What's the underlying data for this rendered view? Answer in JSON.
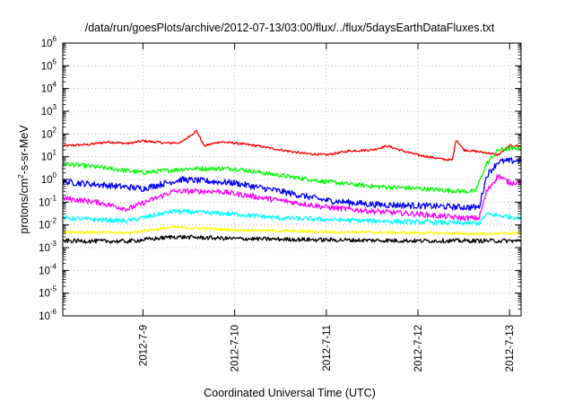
{
  "chart_data": {
    "type": "line",
    "title": "/data/run/goesPlots/archive/2012-07-13/03:00/flux/../flux/5daysEarthDataFluxes.txt",
    "xlabel": "Coordinated Universal Time (UTC)",
    "ylabel": {
      "base": "protons/cm",
      "exp": "2",
      "rest": "-s-sr-MeV"
    },
    "yscale": "log",
    "ylim": [
      1e-06,
      1000000.0
    ],
    "xlim": [
      "2012-07-08T03:00",
      "2012-07-13T03:00"
    ],
    "grid": true,
    "legend": "none",
    "y_ticks": [
      {
        "value": 1e-06,
        "base": "10",
        "exp": "-6"
      },
      {
        "value": 1e-05,
        "base": "10",
        "exp": "-5"
      },
      {
        "value": 0.0001,
        "base": "10",
        "exp": "-4"
      },
      {
        "value": 0.001,
        "base": "10",
        "exp": "-3"
      },
      {
        "value": 0.01,
        "base": "10",
        "exp": "-2"
      },
      {
        "value": 0.1,
        "base": "10",
        "exp": "-1"
      },
      {
        "value": 1,
        "base": "10",
        "exp": "0"
      },
      {
        "value": 10,
        "base": "10",
        "exp": "1"
      },
      {
        "value": 100,
        "base": "10",
        "exp": "2"
      },
      {
        "value": 1000,
        "base": "10",
        "exp": "3"
      },
      {
        "value": 10000,
        "base": "10",
        "exp": "4"
      },
      {
        "value": 100000,
        "base": "10",
        "exp": "5"
      },
      {
        "value": 1000000,
        "base": "10",
        "exp": "6"
      }
    ],
    "x_ticks": [
      {
        "label": "2012-7-9",
        "value": "2012-07-09T00:00"
      },
      {
        "label": "2012-7-10",
        "value": "2012-07-10T00:00"
      },
      {
        "label": "2012-7-11",
        "value": "2012-07-11T00:00"
      },
      {
        "label": "2012-7-12",
        "value": "2012-07-12T00:00"
      },
      {
        "label": "2012-7-13",
        "value": "2012-07-13T00:00"
      }
    ],
    "series": [
      {
        "color": "#ff0000",
        "points": [
          [
            "2012-07-08T03:00",
            30
          ],
          [
            "2012-07-08T10:00",
            35
          ],
          [
            "2012-07-08T15:00",
            45
          ],
          [
            "2012-07-08T20:00",
            38
          ],
          [
            "2012-07-09T00:00",
            50
          ],
          [
            "2012-07-09T06:00",
            40
          ],
          [
            "2012-07-09T10:00",
            42
          ],
          [
            "2012-07-09T14:00",
            140
          ],
          [
            "2012-07-09T16:00",
            30
          ],
          [
            "2012-07-09T20:00",
            45
          ],
          [
            "2012-07-10T00:00",
            40
          ],
          [
            "2012-07-10T06:00",
            30
          ],
          [
            "2012-07-10T12:00",
            20
          ],
          [
            "2012-07-10T18:00",
            14
          ],
          [
            "2012-07-11T00:00",
            12
          ],
          [
            "2012-07-11T06:00",
            18
          ],
          [
            "2012-07-11T12:00",
            20
          ],
          [
            "2012-07-11T16:00",
            30
          ],
          [
            "2012-07-11T20:00",
            18
          ],
          [
            "2012-07-12T00:00",
            12
          ],
          [
            "2012-07-12T06:00",
            8
          ],
          [
            "2012-07-12T09:00",
            7
          ],
          [
            "2012-07-12T10:00",
            60
          ],
          [
            "2012-07-12T12:00",
            20
          ],
          [
            "2012-07-12T18:00",
            15
          ],
          [
            "2012-07-12T21:00",
            12
          ],
          [
            "2012-07-13T00:00",
            30
          ],
          [
            "2012-07-13T03:00",
            30
          ]
        ]
      },
      {
        "color": "#00ff00",
        "points": [
          [
            "2012-07-08T03:00",
            5
          ],
          [
            "2012-07-08T12:00",
            3.5
          ],
          [
            "2012-07-09T00:00",
            2
          ],
          [
            "2012-07-09T12:00",
            3
          ],
          [
            "2012-07-10T00:00",
            3
          ],
          [
            "2012-07-10T12:00",
            1.5
          ],
          [
            "2012-07-11T00:00",
            0.8
          ],
          [
            "2012-07-11T12:00",
            0.5
          ],
          [
            "2012-07-12T00:00",
            0.4
          ],
          [
            "2012-07-12T12:00",
            0.3
          ],
          [
            "2012-07-12T15:00",
            0.3
          ],
          [
            "2012-07-12T18:00",
            5
          ],
          [
            "2012-07-12T21:00",
            20
          ],
          [
            "2012-07-13T03:00",
            25
          ]
        ]
      },
      {
        "color": "#0000ff",
        "points": [
          [
            "2012-07-08T03:00",
            0.8
          ],
          [
            "2012-07-08T12:00",
            0.6
          ],
          [
            "2012-07-09T00:00",
            0.4
          ],
          [
            "2012-07-09T10:00",
            1
          ],
          [
            "2012-07-10T00:00",
            0.7
          ],
          [
            "2012-07-10T12:00",
            0.3
          ],
          [
            "2012-07-11T00:00",
            0.12
          ],
          [
            "2012-07-11T12:00",
            0.08
          ],
          [
            "2012-07-12T00:00",
            0.07
          ],
          [
            "2012-07-12T12:00",
            0.06
          ],
          [
            "2012-07-12T16:00",
            0.06
          ],
          [
            "2012-07-12T18:00",
            1.5
          ],
          [
            "2012-07-12T21:00",
            6
          ],
          [
            "2012-07-13T03:00",
            7
          ]
        ]
      },
      {
        "color": "#ff00ff",
        "points": [
          [
            "2012-07-08T03:00",
            0.15
          ],
          [
            "2012-07-08T12:00",
            0.1
          ],
          [
            "2012-07-08T20:00",
            0.05
          ],
          [
            "2012-07-09T08:00",
            0.3
          ],
          [
            "2012-07-09T20:00",
            0.3
          ],
          [
            "2012-07-10T08:00",
            0.15
          ],
          [
            "2012-07-11T00:00",
            0.06
          ],
          [
            "2012-07-11T12:00",
            0.04
          ],
          [
            "2012-07-12T00:00",
            0.03
          ],
          [
            "2012-07-12T12:00",
            0.02
          ],
          [
            "2012-07-12T16:00",
            0.02
          ],
          [
            "2012-07-12T18:00",
            0.3
          ],
          [
            "2012-07-12T21:00",
            1.5
          ],
          [
            "2012-07-13T00:00",
            0.7
          ],
          [
            "2012-07-13T03:00",
            0.8
          ]
        ]
      },
      {
        "color": "#00ffff",
        "points": [
          [
            "2012-07-08T03:00",
            0.02
          ],
          [
            "2012-07-08T20:00",
            0.015
          ],
          [
            "2012-07-09T08:00",
            0.04
          ],
          [
            "2012-07-10T00:00",
            0.03
          ],
          [
            "2012-07-10T12:00",
            0.02
          ],
          [
            "2012-07-11T12:00",
            0.015
          ],
          [
            "2012-07-12T12:00",
            0.012
          ],
          [
            "2012-07-12T16:00",
            0.012
          ],
          [
            "2012-07-12T18:00",
            0.03
          ],
          [
            "2012-07-13T03:00",
            0.02
          ]
        ]
      },
      {
        "color": "#ffff00",
        "points": [
          [
            "2012-07-08T03:00",
            0.005
          ],
          [
            "2012-07-08T20:00",
            0.0045
          ],
          [
            "2012-07-09T08:00",
            0.008
          ],
          [
            "2012-07-10T00:00",
            0.006
          ],
          [
            "2012-07-11T00:00",
            0.005
          ],
          [
            "2012-07-12T00:00",
            0.0045
          ],
          [
            "2012-07-12T18:00",
            0.004
          ],
          [
            "2012-07-13T03:00",
            0.0045
          ]
        ]
      },
      {
        "color": "#000000",
        "points": [
          [
            "2012-07-08T03:00",
            0.002
          ],
          [
            "2012-07-08T20:00",
            0.0019
          ],
          [
            "2012-07-09T08:00",
            0.003
          ],
          [
            "2012-07-10T00:00",
            0.0025
          ],
          [
            "2012-07-11T00:00",
            0.0022
          ],
          [
            "2012-07-12T00:00",
            0.002
          ],
          [
            "2012-07-13T03:00",
            0.002
          ]
        ]
      }
    ]
  }
}
